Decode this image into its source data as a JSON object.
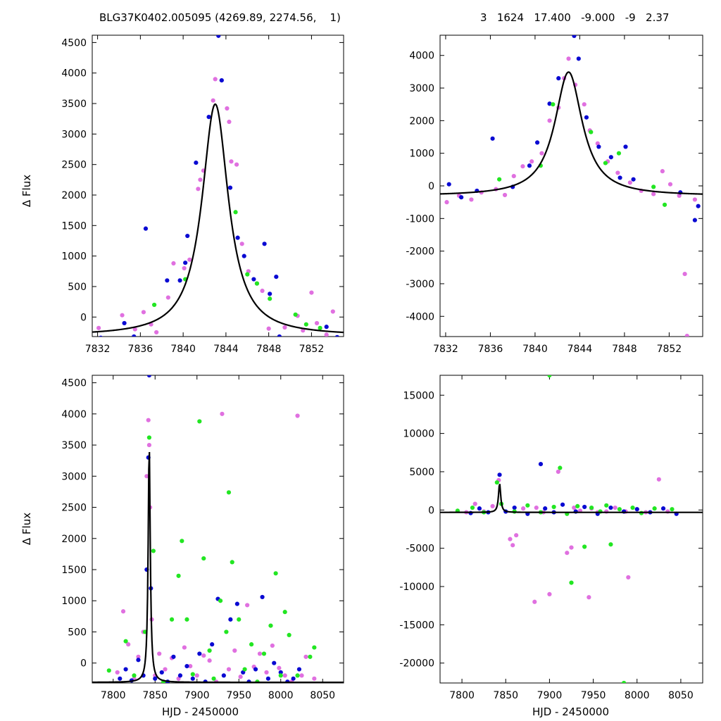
{
  "header": {
    "left_title": "BLG37K0402.005095 (4269.89, 2274.56,    1)",
    "right_title": "3   1624   17.400   -9.000   -9   2.37"
  },
  "axes": {
    "y_label": "Δ Flux",
    "x_label": "HJD - 2450000"
  },
  "colors": {
    "series_magenta": "#e070e0",
    "series_blue": "#0a0ad2",
    "series_green": "#22e622",
    "model": "#000000"
  },
  "chart_data": [
    {
      "type": "scatter",
      "panel": "top-left",
      "xlim": [
        7831.5,
        7855
      ],
      "ylim": [
        -320,
        4620
      ],
      "xticks": [
        7832,
        7836,
        7840,
        7844,
        7848,
        7852
      ],
      "yticks": [
        0,
        500,
        1000,
        1500,
        2000,
        2500,
        3000,
        3500,
        4000,
        4500
      ],
      "ylabel": "Δ Flux",
      "model": {
        "t0": 7843.0,
        "fwhm": 3.0,
        "peak": 3800,
        "base": -310
      },
      "series": [
        {
          "name": "magenta",
          "x": [
            7832.1,
            7834.3,
            7835.5,
            7836.3,
            7837.0,
            7837.5,
            7838.6,
            7839.1,
            7840.1,
            7840.6,
            7841.4,
            7841.6,
            7841.9,
            7842.8,
            7843.0,
            7844.1,
            7844.3,
            7844.5,
            7845.0,
            7845.5,
            7846.1,
            7846.9,
            7847.4,
            7848.0,
            7849.5,
            7850.7,
            7851.2,
            7852.0,
            7852.5,
            7853.4,
            7854.0
          ],
          "y": [
            -180,
            30,
            -200,
            80,
            -120,
            -250,
            320,
            880,
            800,
            940,
            2100,
            2250,
            2400,
            3550,
            3900,
            3420,
            3200,
            2550,
            2500,
            1200,
            750,
            550,
            430,
            -190,
            -170,
            20,
            -220,
            400,
            -100,
            -290,
            90
          ]
        },
        {
          "name": "blue",
          "x": [
            7832.3,
            7834.5,
            7835.4,
            7836.5,
            7838.5,
            7839.7,
            7840.2,
            7840.4,
            7841.2,
            7842.4,
            7843.3,
            7843.6,
            7844.4,
            7845.1,
            7845.7,
            7846.6,
            7847.6,
            7848.1,
            7848.7,
            7849.0,
            7853.4,
            7854.4
          ],
          "y": [
            -340,
            -100,
            -320,
            1450,
            600,
            600,
            890,
            1330,
            2530,
            3280,
            4610,
            3880,
            2120,
            1300,
            1000,
            620,
            1200,
            380,
            660,
            -320,
            -160,
            -330
          ]
        },
        {
          "name": "green",
          "x": [
            7837.3,
            7840.2,
            7844.9,
            7846.0,
            7846.9,
            7848.1,
            7850.5,
            7851.5,
            7852.8
          ],
          "y": [
            200,
            620,
            1720,
            700,
            550,
            300,
            40,
            -120,
            -180
          ]
        }
      ]
    },
    {
      "type": "scatter",
      "panel": "top-right",
      "xlim": [
        7831.5,
        7855
      ],
      "ylim": [
        -4620,
        4620
      ],
      "xticks": [
        7832,
        7836,
        7840,
        7844,
        7848,
        7852
      ],
      "yticks": [
        -4000,
        -3000,
        -2000,
        -1000,
        0,
        1000,
        2000,
        3000,
        4000
      ],
      "model": {
        "t0": 7843.0,
        "fwhm": 3.0,
        "peak": 3800,
        "base": -310
      },
      "series": [
        {
          "name": "magenta",
          "x": [
            7832.1,
            7833.2,
            7834.3,
            7835.2,
            7836.5,
            7837.3,
            7838.1,
            7838.9,
            7839.7,
            7840.6,
            7841.3,
            7842.1,
            7842.6,
            7843.0,
            7843.6,
            7844.4,
            7844.9,
            7845.6,
            7846.5,
            7847.4,
            7848.5,
            7849.5,
            7850.6,
            7851.4,
            7852.1,
            7852.9,
            7853.4,
            7853.6,
            7854.3
          ],
          "y": [
            -500,
            -300,
            -420,
            -200,
            -100,
            -280,
            300,
            600,
            750,
            1000,
            2000,
            2400,
            3300,
            3900,
            3100,
            2500,
            1700,
            1300,
            750,
            400,
            100,
            -150,
            -250,
            450,
            50,
            -300,
            -2700,
            -4600,
            -420
          ]
        },
        {
          "name": "blue",
          "x": [
            7832.3,
            7833.4,
            7834.8,
            7836.2,
            7838.0,
            7839.5,
            7840.2,
            7841.3,
            7842.1,
            7843.5,
            7843.9,
            7844.6,
            7845.7,
            7846.8,
            7847.6,
            7848.1,
            7848.8,
            7853.0,
            7854.3,
            7854.6
          ],
          "y": [
            50,
            -350,
            -150,
            1450,
            -30,
            620,
            1330,
            2520,
            3300,
            4600,
            3900,
            2100,
            1200,
            880,
            250,
            1200,
            200,
            -200,
            -1050,
            -620
          ]
        },
        {
          "name": "green",
          "x": [
            7836.8,
            7840.5,
            7841.6,
            7845.0,
            7846.3,
            7847.5,
            7850.6,
            7851.6
          ],
          "y": [
            200,
            620,
            2500,
            1650,
            700,
            1000,
            -30,
            -580
          ]
        }
      ]
    },
    {
      "type": "scatter",
      "panel": "bottom-left",
      "xlim": [
        7775,
        8075
      ],
      "ylim": [
        -320,
        4620
      ],
      "xticks": [
        7800,
        7850,
        7900,
        7950,
        8000,
        8050
      ],
      "yticks": [
        0,
        500,
        1000,
        1500,
        2000,
        2500,
        3000,
        3500,
        4000,
        4500
      ],
      "ylabel": "Δ Flux",
      "xlabel": "HJD - 2450000",
      "model": {
        "t0": 7843.0,
        "fwhm": 3.0,
        "peak": 3800,
        "base": -310
      },
      "series": [
        {
          "name": "magenta",
          "x": [
            7805,
            7812,
            7818,
            7825,
            7830,
            7836,
            7840,
            7842,
            7843,
            7844,
            7846,
            7850,
            7855,
            7862,
            7870,
            7878,
            7885,
            7892,
            7900,
            7908,
            7915,
            7923,
            7930,
            7938,
            7945,
            7952,
            7960,
            7968,
            7975,
            7983,
            7990,
            7998,
            8005,
            8013,
            8020,
            8025,
            8030,
            8040
          ],
          "y": [
            -150,
            830,
            300,
            -250,
            100,
            500,
            3000,
            3900,
            3500,
            2500,
            700,
            -200,
            150,
            -100,
            80,
            -250,
            250,
            -50,
            -200,
            120,
            40,
            -300,
            4000,
            -100,
            200,
            -220,
            930,
            -60,
            150,
            -150,
            280,
            -80,
            -200,
            -300,
            3970,
            -200,
            100,
            -250
          ]
        },
        {
          "name": "blue",
          "x": [
            7808,
            7815,
            7822,
            7830,
            7836,
            7840,
            7842,
            7843,
            7845,
            7850,
            7858,
            7865,
            7872,
            7880,
            7888,
            7895,
            7903,
            7910,
            7918,
            7925,
            7932,
            7940,
            7948,
            7955,
            7962,
            7970,
            7978,
            7985,
            7992,
            8000,
            8008,
            8015,
            8022
          ],
          "y": [
            -250,
            -100,
            -280,
            50,
            -200,
            1500,
            3300,
            4620,
            1200,
            -250,
            -150,
            -300,
            100,
            -200,
            -50,
            -250,
            150,
            -300,
            300,
            1030,
            -200,
            700,
            950,
            -150,
            -300,
            -100,
            1060,
            -250,
            0,
            -150,
            -300,
            -250,
            -100
          ]
        },
        {
          "name": "green",
          "x": [
            7795,
            7815,
            7825,
            7838,
            7843,
            7848,
            7860,
            7870,
            7878,
            7882,
            7888,
            7895,
            7903,
            7908,
            7915,
            7920,
            7928,
            7935,
            7938,
            7942,
            7950,
            7957,
            7965,
            7972,
            7980,
            7988,
            7994,
            8000,
            8005,
            8010,
            8020,
            8035,
            8040
          ],
          "y": [
            -120,
            350,
            -200,
            500,
            3620,
            1800,
            -300,
            700,
            1400,
            1960,
            700,
            -180,
            3880,
            1680,
            200,
            -250,
            1000,
            500,
            2740,
            1620,
            700,
            -100,
            300,
            -300,
            150,
            600,
            1440,
            -200,
            820,
            450,
            -200,
            100,
            250
          ]
        }
      ]
    },
    {
      "type": "scatter",
      "panel": "bottom-right",
      "xlim": [
        7775,
        8075
      ],
      "ylim": [
        -22600,
        17600
      ],
      "xticks": [
        7800,
        7850,
        7900,
        7950,
        8000,
        8050
      ],
      "yticks": [
        -20000,
        -15000,
        -10000,
        -5000,
        0,
        5000,
        10000,
        15000
      ],
      "xlabel": "HJD - 2450000",
      "model": {
        "t0": 7843.0,
        "fwhm": 3.0,
        "peak": 3800,
        "base": -310
      },
      "series": [
        {
          "name": "magenta",
          "x": [
            7805,
            7815,
            7825,
            7835,
            7842,
            7855,
            7858,
            7862,
            7870,
            7883,
            7885,
            7893,
            7900,
            7910,
            7920,
            7925,
            7928,
            7935,
            7945,
            7948,
            7955,
            7965,
            7975,
            7987,
            7990,
            8000,
            8010,
            8025,
            8035
          ],
          "y": [
            -300,
            800,
            -200,
            500,
            3900,
            -3800,
            -4600,
            -3300,
            200,
            -12000,
            300,
            -300,
            -11000,
            5000,
            -5600,
            -4900,
            300,
            -100,
            -11400,
            200,
            -300,
            -200,
            300,
            -200,
            -8800,
            100,
            -300,
            4000,
            -200
          ]
        },
        {
          "name": "blue",
          "x": [
            7810,
            7820,
            7830,
            7843,
            7850,
            7860,
            7875,
            7890,
            7895,
            7905,
            7915,
            7930,
            7940,
            7955,
            7970,
            7985,
            8000,
            8015,
            8030,
            8045
          ],
          "y": [
            -400,
            200,
            -300,
            4600,
            -200,
            300,
            -500,
            6000,
            200,
            -300,
            700,
            -200,
            400,
            -500,
            300,
            -200,
            100,
            -300,
            200,
            -500
          ]
        },
        {
          "name": "green",
          "x": [
            7795,
            7812,
            7825,
            7840,
            7845,
            7860,
            7875,
            7890,
            7900,
            7905,
            7912,
            7920,
            7925,
            7932,
            7940,
            7948,
            7958,
            7965,
            7970,
            7980,
            7985,
            7995,
            8005,
            8020,
            8040
          ],
          "y": [
            -100,
            300,
            -300,
            3600,
            800,
            -200,
            600,
            -300,
            17600,
            400,
            5500,
            -500,
            -9500,
            500,
            -4800,
            300,
            -200,
            600,
            -4500,
            100,
            -22600,
            300,
            -400,
            200,
            100
          ]
        }
      ]
    }
  ]
}
